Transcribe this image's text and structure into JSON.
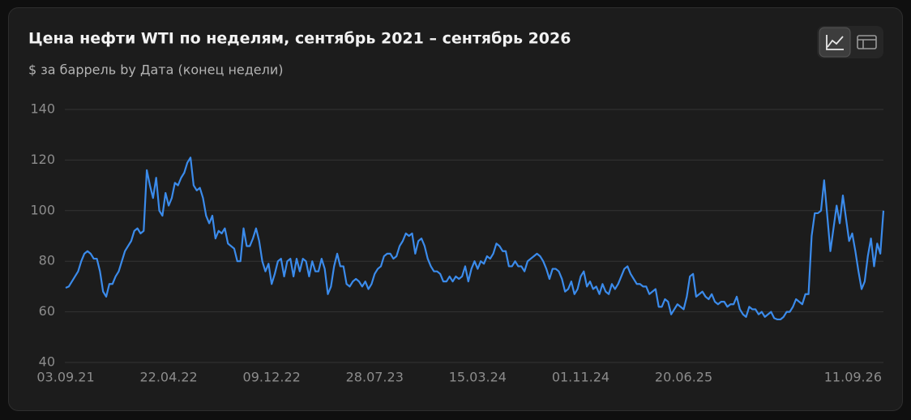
{
  "chart_data": {
    "type": "line",
    "title": "Цена нефти WTI по неделям, сентябрь 2021 – сентябрь 2026",
    "subtitle": "$ за баррель by Дата (конец недели)",
    "categories": [
      "03.09.21",
      null,
      null,
      null,
      null,
      null,
      null,
      null,
      null,
      null,
      null,
      null,
      null,
      null,
      null,
      null,
      null,
      null,
      null,
      null,
      null,
      null,
      null,
      null,
      null,
      null,
      null,
      null,
      null,
      null,
      null,
      null,
      null,
      "22.04.22",
      null,
      null,
      null,
      null,
      null,
      null,
      null,
      null,
      null,
      null,
      null,
      null,
      null,
      null,
      null,
      null,
      null,
      null,
      null,
      null,
      null,
      null,
      null,
      null,
      null,
      null,
      null,
      null,
      null,
      null,
      null,
      null,
      "09.12.22",
      null,
      null,
      null,
      null,
      null,
      null,
      null,
      null,
      null,
      null,
      null,
      null,
      null,
      null,
      null,
      null,
      null,
      null,
      null,
      null,
      null,
      null,
      null,
      null,
      null,
      null,
      null,
      null,
      null,
      null,
      null,
      null,
      "28.07.23",
      null,
      null,
      null,
      null,
      null,
      null,
      null,
      null,
      null,
      null,
      null,
      null,
      null,
      null,
      null,
      null,
      null,
      null,
      null,
      null,
      null,
      null,
      null,
      null,
      null,
      null,
      null,
      null,
      null,
      null,
      null,
      null,
      "15.03.24",
      null,
      null,
      null,
      null,
      null,
      null,
      null,
      null,
      null,
      null,
      null,
      null,
      null,
      null,
      null,
      null,
      null,
      null,
      null,
      null,
      null,
      null,
      null,
      null,
      null,
      null,
      null,
      null,
      null,
      null,
      null,
      null,
      "01.11.24",
      null,
      null,
      null,
      null,
      null,
      null,
      null,
      null,
      null,
      null,
      null,
      null,
      null,
      null,
      null,
      null,
      null,
      null,
      null,
      null,
      null,
      null,
      null,
      null,
      null,
      null,
      null,
      null,
      null,
      null,
      null,
      null,
      "20.06.25",
      null,
      null,
      null,
      null,
      null,
      null,
      null,
      null,
      null,
      null,
      null,
      null,
      null,
      null,
      null,
      null,
      null,
      null,
      null,
      null,
      null,
      null,
      null,
      null,
      null,
      null,
      null,
      null,
      null,
      null,
      null,
      null,
      null,
      null,
      null,
      null,
      null,
      null,
      null,
      null,
      null,
      null,
      null,
      null,
      null,
      null,
      null,
      null,
      null,
      null,
      null,
      null,
      null,
      null,
      null,
      null,
      null,
      null,
      null,
      null,
      null,
      null,
      null,
      "11.09.26"
    ],
    "values": [
      69.5,
      70,
      72,
      74,
      76,
      80,
      83,
      84,
      83,
      81,
      81,
      76,
      68,
      66,
      71,
      71,
      74,
      76,
      80,
      84,
      86,
      88,
      92,
      93,
      91,
      92,
      116,
      110,
      105,
      113,
      100,
      98,
      107,
      102,
      105,
      111,
      110,
      113,
      115,
      119,
      121,
      110,
      108,
      109,
      105,
      98,
      95,
      98,
      89,
      92,
      91,
      93,
      87,
      86,
      85,
      80,
      80,
      93,
      86,
      86,
      89,
      93,
      88,
      80,
      76,
      79,
      71,
      75,
      80,
      81,
      74,
      80,
      81,
      74,
      81,
      76,
      81,
      80,
      74,
      80,
      76,
      76,
      81,
      77,
      67,
      70,
      78,
      83,
      78,
      78,
      71,
      70,
      72,
      73,
      72,
      70,
      72,
      69,
      71,
      75,
      77,
      78,
      82,
      83,
      83,
      81,
      82,
      86,
      88,
      91,
      90,
      91,
      83,
      88,
      89,
      86,
      81,
      78,
      76,
      76,
      75,
      72,
      72,
      74,
      72,
      74,
      73,
      74,
      78,
      72,
      77,
      80,
      77,
      80,
      79,
      82,
      81,
      83,
      87,
      86,
      84,
      84,
      78,
      78,
      80,
      78,
      78,
      76,
      80,
      81,
      82,
      83,
      82,
      80,
      77,
      73,
      77,
      77,
      76,
      73,
      68,
      69,
      72,
      67,
      69,
      74,
      76,
      70,
      72,
      69,
      70,
      67,
      71,
      68,
      67,
      71,
      69,
      71,
      74,
      77,
      78,
      75,
      73,
      71,
      71,
      70,
      70,
      67,
      68,
      69,
      62,
      62,
      65,
      64,
      59,
      61,
      63,
      62,
      61,
      66,
      74,
      75,
      66,
      67,
      68,
      66,
      65,
      67,
      64,
      63,
      64,
      64,
      62,
      63,
      63,
      66,
      61,
      59,
      58,
      62,
      61,
      61,
      59,
      60,
      58,
      59,
      60,
      57.5,
      57,
      57,
      58,
      60,
      60,
      62,
      65,
      64,
      63,
      67,
      67,
      90,
      99,
      99,
      100,
      112,
      98,
      84,
      93,
      102,
      95,
      106,
      97,
      88,
      91,
      84,
      76,
      69,
      72,
      82,
      89,
      78,
      87,
      83,
      100
    ],
    "color": "#3b8beb",
    "ylim": [
      40,
      140
    ],
    "yticks": [
      40,
      60,
      80,
      100,
      120,
      140
    ],
    "grid": true
  }
}
